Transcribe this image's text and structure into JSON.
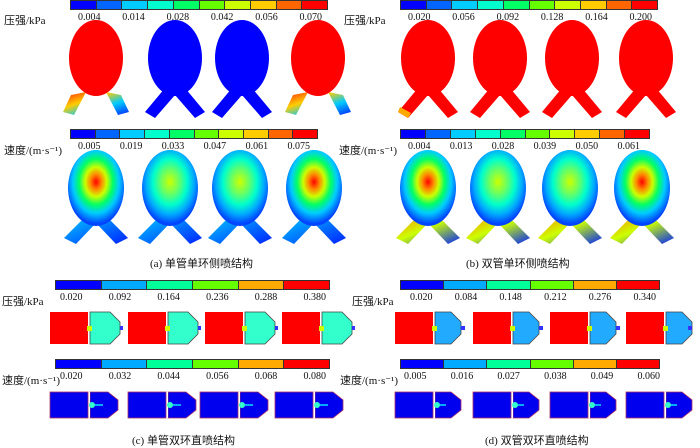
{
  "palette": [
    "#0000ff",
    "#0066ff",
    "#00ccff",
    "#00ffcc",
    "#00ff66",
    "#66ff00",
    "#ccff00",
    "#ffcc00",
    "#ff6600",
    "#ff0000"
  ],
  "palette6": [
    "#0000ff",
    "#00aaff",
    "#00ff99",
    "#66ff00",
    "#ffaa00",
    "#ff0000"
  ],
  "panel_a": {
    "pressure_label": "压强/kPa",
    "pressure_ticks": [
      "0.004",
      "0.014",
      "0.028",
      "0.042",
      "0.056",
      "0.070"
    ],
    "velocity_label": "速度/(m·s⁻¹)",
    "velocity_ticks": [
      "0.005",
      "0.019",
      "0.033",
      "0.047",
      "0.061",
      "0.075"
    ],
    "caption": "(a) 单管单环侧喷结构"
  },
  "panel_b": {
    "pressure_label": "压强/kPa",
    "pressure_ticks": [
      "0.020",
      "0.056",
      "0.092",
      "0.128",
      "0.164",
      "0.200"
    ],
    "velocity_label": "速度/(m·s⁻¹)",
    "velocity_ticks": [
      "0.004",
      "0.013",
      "0.028",
      "0.039",
      "0.050",
      "0.061"
    ],
    "caption": "(b) 双管单环侧喷结构"
  },
  "panel_c": {
    "pressure_label": "压强/kPa",
    "pressure_ticks": [
      "0.020",
      "0.092",
      "0.164",
      "0.236",
      "0.288",
      "0.380"
    ],
    "velocity_label": "速度/(m·s⁻¹)",
    "velocity_ticks": [
      "0.020",
      "0.032",
      "0.044",
      "0.056",
      "0.068",
      "0.080"
    ],
    "caption": "(c) 单管双环直喷结构"
  },
  "panel_d": {
    "pressure_label": "压强/kPa",
    "pressure_ticks": [
      "0.020",
      "0.084",
      "0.148",
      "0.212",
      "0.276",
      "0.340"
    ],
    "velocity_label": "速度/(m·s⁻¹)",
    "velocity_ticks": [
      "0.005",
      "0.016",
      "0.027",
      "0.038",
      "0.049",
      "0.060"
    ],
    "caption": "(d) 双管双环直喷结构"
  }
}
